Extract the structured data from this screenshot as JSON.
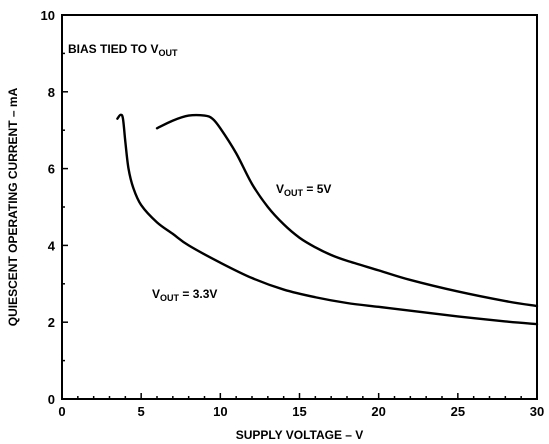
{
  "chart_data": {
    "type": "line",
    "xlabel": "SUPPLY VOLTAGE – V",
    "ylabel": "QUIESCENT OPERATING CURRENT – mA",
    "xlim": [
      0,
      30
    ],
    "ylim": [
      0,
      10
    ],
    "x_ticks": [
      "0",
      "5",
      "10",
      "15",
      "20",
      "25",
      "30"
    ],
    "y_ticks": [
      "0",
      "2",
      "4",
      "6",
      "8",
      "10"
    ],
    "grid": false,
    "annotation": {
      "main": "BIAS TIED TO V",
      "sub": "OUT"
    },
    "series": [
      {
        "name": "VOUT = 3.3V",
        "label_parts": {
          "pre": "V",
          "sub": "OUT",
          "post": " = 3.3V"
        },
        "points": [
          [
            3.5,
            7.3
          ],
          [
            3.7,
            7.4
          ],
          [
            3.85,
            7.3
          ],
          [
            4.0,
            6.7
          ],
          [
            4.2,
            6.0
          ],
          [
            4.5,
            5.5
          ],
          [
            5,
            5.05
          ],
          [
            6,
            4.6
          ],
          [
            7,
            4.3
          ],
          [
            8,
            4.0
          ],
          [
            10,
            3.55
          ],
          [
            12,
            3.15
          ],
          [
            14,
            2.85
          ],
          [
            16,
            2.65
          ],
          [
            18,
            2.5
          ],
          [
            20,
            2.4
          ],
          [
            22,
            2.3
          ],
          [
            25,
            2.15
          ],
          [
            28,
            2.02
          ],
          [
            30,
            1.95
          ]
        ]
      },
      {
        "name": "VOUT = 5V",
        "label_parts": {
          "pre": "V",
          "sub": "OUT",
          "post": " = 5V"
        },
        "points": [
          [
            6,
            7.05
          ],
          [
            7,
            7.25
          ],
          [
            8,
            7.38
          ],
          [
            9,
            7.38
          ],
          [
            9.5,
            7.3
          ],
          [
            10,
            7.05
          ],
          [
            11,
            6.4
          ],
          [
            12,
            5.6
          ],
          [
            13,
            5.0
          ],
          [
            14,
            4.55
          ],
          [
            15,
            4.2
          ],
          [
            16,
            3.95
          ],
          [
            17,
            3.75
          ],
          [
            18,
            3.6
          ],
          [
            20,
            3.35
          ],
          [
            22,
            3.1
          ],
          [
            25,
            2.8
          ],
          [
            28,
            2.55
          ],
          [
            30,
            2.42
          ]
        ]
      }
    ]
  }
}
